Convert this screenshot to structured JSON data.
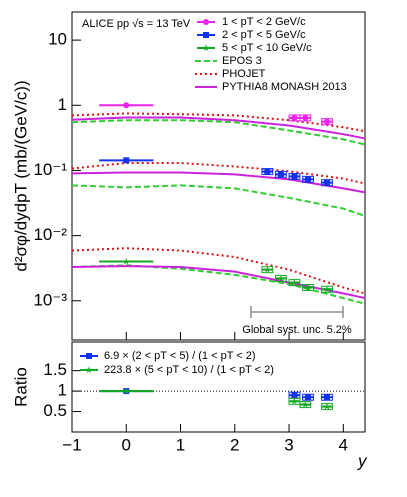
{
  "chart_data": [
    {
      "type": "scatter",
      "annotation": "ALICE pp √s = 13 TeV",
      "note": "Global syst. unc. 5.2%",
      "ylabel": "d²σφ/dydpT (mb/(GeV/c))",
      "log_y": true,
      "xlim": [
        -1,
        4.4
      ],
      "ylim": [
        0.00025,
        27
      ],
      "xticks": [
        {
          "value": -1,
          "label": "−1"
        },
        0,
        1,
        2,
        3,
        4
      ],
      "yticks": [
        {
          "value": 0.001,
          "label": "10⁻³"
        },
        {
          "value": 0.01,
          "label": "10⁻²"
        },
        {
          "value": 0.1,
          "label": "10⁻¹"
        },
        1,
        10
      ],
      "series": [
        {
          "name": "1 < pT < 2 GeV/c",
          "color": "#ee22ee",
          "marker": "circle",
          "x": [
            0,
            3.1,
            3.3,
            3.7
          ],
          "xerr": [
            0.5,
            0.1,
            0.1,
            0.1
          ],
          "values": [
            1.0,
            0.64,
            0.64,
            0.56
          ]
        },
        {
          "name": "2 < pT < 5 GeV/c",
          "color": "#1133ee",
          "marker": "square",
          "x": [
            0,
            2.6,
            2.85,
            3.1,
            3.35,
            3.7
          ],
          "xerr": [
            0.5,
            0.1,
            0.1,
            0.1,
            0.1,
            0.1
          ],
          "values": [
            0.143,
            0.096,
            0.087,
            0.081,
            0.073,
            0.065
          ]
        },
        {
          "name": "5 < pT < 10 GeV/c",
          "color": "#11aa22",
          "marker": "star",
          "x": [
            0,
            2.6,
            2.85,
            3.1,
            3.35,
            3.7
          ],
          "xerr": [
            0.5,
            0.1,
            0.1,
            0.1,
            0.1,
            0.1
          ],
          "values": [
            0.004,
            0.003,
            0.0022,
            0.0019,
            0.0016,
            0.0015
          ]
        }
      ],
      "models": [
        {
          "name": "EPOS 3",
          "color": "#33cc33",
          "dash": "6,3",
          "curves": [
            {
              "x": [
                -1,
                0,
                1,
                2,
                3,
                4,
                4.4
              ],
              "values": [
                0.55,
                0.59,
                0.59,
                0.55,
                0.41,
                0.3,
                0.25
              ]
            },
            {
              "x": [
                -1,
                0,
                1,
                2,
                3,
                4,
                4.4
              ],
              "values": [
                0.059,
                0.055,
                0.059,
                0.053,
                0.038,
                0.026,
                0.02
              ]
            },
            {
              "x": [
                -1,
                0,
                1,
                2,
                3,
                4,
                4.4
              ],
              "values": [
                0.0033,
                0.0035,
                0.0031,
                0.0025,
                0.0018,
                0.0011,
                0.0009
              ]
            }
          ]
        },
        {
          "name": "PHOJET",
          "color": "#dd1111",
          "dash": "2,3",
          "curves": [
            {
              "x": [
                -1,
                0,
                1,
                2,
                3,
                4,
                4.4
              ],
              "values": [
                0.7,
                0.75,
                0.73,
                0.7,
                0.59,
                0.46,
                0.4
              ]
            },
            {
              "x": [
                -1,
                0,
                1,
                2,
                3,
                4,
                4.4
              ],
              "values": [
                0.107,
                0.13,
                0.13,
                0.115,
                0.097,
                0.075,
                0.063
              ]
            },
            {
              "x": [
                -1,
                0,
                1,
                2,
                3,
                4,
                4.4
              ],
              "values": [
                0.0059,
                0.0064,
                0.0059,
                0.0047,
                0.003,
                0.0016,
                0.0013
              ]
            }
          ]
        },
        {
          "name": "PYTHIA8 MONASH 2013",
          "color": "#cc22dd",
          "dash": "none",
          "curves": [
            {
              "x": [
                -1,
                0,
                1,
                2,
                3,
                4,
                4.4
              ],
              "values": [
                0.6,
                0.65,
                0.65,
                0.59,
                0.49,
                0.36,
                0.31
              ]
            },
            {
              "x": [
                -1,
                0,
                1,
                2,
                3,
                4,
                4.4
              ],
              "values": [
                0.09,
                0.093,
                0.093,
                0.087,
                0.073,
                0.053,
                0.046
              ]
            },
            {
              "x": [
                -1,
                0,
                1,
                2,
                3,
                4,
                4.4
              ],
              "values": [
                0.0033,
                0.0034,
                0.0033,
                0.0028,
                0.0019,
                0.0013,
                0.0011
              ]
            }
          ]
        }
      ]
    },
    {
      "type": "scatter",
      "ylabel": "Ratio",
      "xlabel": "y",
      "xlim": [
        -1,
        4.4
      ],
      "ylim": [
        0,
        2.2
      ],
      "xticks": [
        {
          "value": -1,
          "label": "−1"
        },
        0,
        1,
        2,
        3,
        4
      ],
      "yticks": [
        0.5,
        1,
        1.5
      ],
      "reference_line": 1,
      "series": [
        {
          "name": "6.9 × (2 < pT < 5) / (1 < pT < 2)",
          "color": "#1133ee",
          "marker": "square",
          "x": [
            0,
            3.1,
            3.35,
            3.7
          ],
          "xerr": [
            0.5,
            0.1,
            0.1,
            0.1
          ],
          "values": [
            1,
            0.9,
            0.85,
            0.85
          ]
        },
        {
          "name": "223.8 × (5 < pT < 10) / (1 < pT < 2)",
          "color": "#11aa22",
          "marker": "star",
          "x": [
            0,
            3.1,
            3.3,
            3.7
          ],
          "xerr": [
            0.5,
            0.1,
            0.1,
            0.1
          ],
          "values": [
            1,
            0.75,
            0.67,
            0.62
          ]
        }
      ]
    }
  ]
}
